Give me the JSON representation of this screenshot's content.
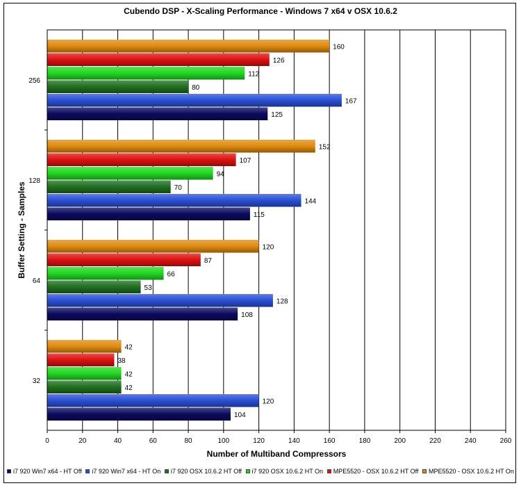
{
  "chart_data": {
    "type": "bar",
    "orientation": "horizontal",
    "title": "Cubendo DSP  -  X-Scaling Performance - Windows 7 x64 v OSX 10.6.2",
    "xlabel": "Number of Multiband Compressors",
    "ylabel": "Buffer Setting - Samples",
    "xlim": [
      0,
      260
    ],
    "xticks": [
      0,
      20,
      40,
      60,
      80,
      100,
      120,
      140,
      160,
      180,
      200,
      220,
      240,
      260
    ],
    "grid": true,
    "legend_position": "bottom",
    "categories": [
      "256",
      "128",
      "64",
      "32"
    ],
    "series": [
      {
        "name": "i7 920 Win7 x64 - HT Off",
        "color": "#0a0a60",
        "values": [
          125,
          115,
          108,
          104
        ]
      },
      {
        "name": "i7 920 Win7 x64 - HT On",
        "color": "#2a4fd6",
        "values": [
          167,
          144,
          128,
          120
        ]
      },
      {
        "name": "i7 920 OSX 10.6.2 HT Off",
        "color": "#1f6e1f",
        "values": [
          80,
          70,
          53,
          42
        ]
      },
      {
        "name": "i7 920 OSX 10.6.2 HT On",
        "color": "#22d622",
        "values": [
          112,
          94,
          66,
          42
        ]
      },
      {
        "name": "MPE5520 - OSX 10.6.2 HT Off",
        "color": "#dd1111",
        "values": [
          126,
          107,
          87,
          38
        ]
      },
      {
        "name": "MPE5520 - OSX 10.6.2 HT On",
        "color": "#e08a10",
        "values": [
          160,
          152,
          120,
          42
        ]
      }
    ]
  }
}
